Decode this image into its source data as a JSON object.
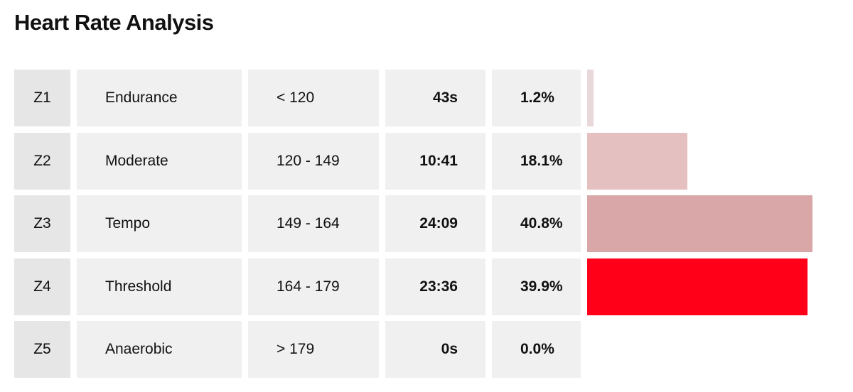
{
  "header": {
    "title": "Heart Rate Analysis"
  },
  "table": {
    "rows": [
      {
        "zone": "Z1",
        "name": "Endurance",
        "range": "< 120",
        "time": "43s",
        "share": 1.2,
        "share_label": "1.2%",
        "color": "#e8d8da"
      },
      {
        "zone": "Z2",
        "name": "Moderate",
        "range": "120 - 149",
        "time": "10:41",
        "share": 18.1,
        "share_label": "18.1%",
        "color": "#e5c0c1"
      },
      {
        "zone": "Z3",
        "name": "Tempo",
        "range": "149 - 164",
        "time": "24:09",
        "share": 40.8,
        "share_label": "40.8%",
        "color": "#d9a7a8"
      },
      {
        "zone": "Z4",
        "name": "Threshold",
        "range": "164 - 179",
        "time": "23:36",
        "share": 39.9,
        "share_label": "39.9%",
        "color": "#ff0018"
      },
      {
        "zone": "Z5",
        "name": "Anaerobic",
        "range": "> 179",
        "time": "0s",
        "share": 0.0,
        "share_label": "0.0%",
        "color": "#ffffff"
      }
    ]
  }
}
